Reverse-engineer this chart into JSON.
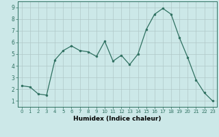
{
  "x": [
    0,
    1,
    2,
    3,
    4,
    5,
    6,
    7,
    8,
    9,
    10,
    11,
    12,
    13,
    14,
    15,
    16,
    17,
    18,
    19,
    20,
    21,
    22,
    23
  ],
  "y": [
    2.3,
    2.2,
    1.6,
    1.5,
    4.5,
    5.3,
    5.7,
    5.3,
    5.2,
    4.8,
    6.1,
    4.4,
    4.9,
    4.1,
    5.0,
    7.1,
    8.4,
    8.9,
    8.4,
    6.4,
    4.7,
    2.8,
    1.7,
    1.0
  ],
  "line_color": "#2e7060",
  "marker": "o",
  "markersize": 2.0,
  "bg_color": "#cce8e8",
  "grid_color": "#b0c8c8",
  "xlabel": "Humidex (Indice chaleur)",
  "ylabel_ticks": [
    1,
    2,
    3,
    4,
    5,
    6,
    7,
    8,
    9
  ],
  "xlim": [
    -0.5,
    23.5
  ],
  "ylim": [
    0.5,
    9.5
  ],
  "xtick_fontsize": 5.0,
  "ytick_fontsize": 5.5,
  "xlabel_fontsize": 6.5
}
